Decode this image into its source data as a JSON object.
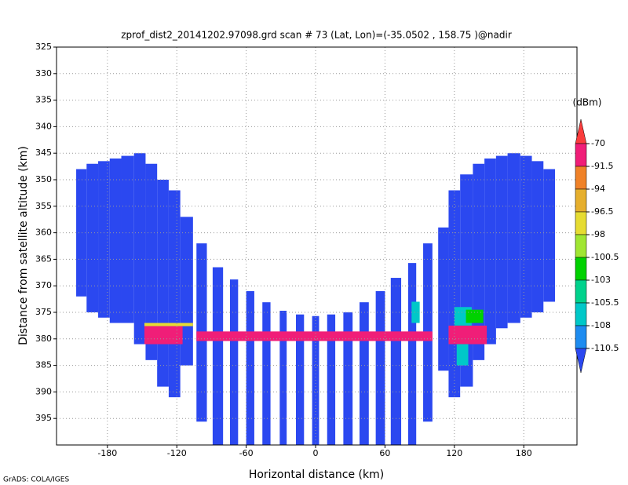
{
  "chart_data": {
    "type": "raster",
    "title": "zprof_dist2_20141202.97098.grd   scan # 73   (Lat, Lon)=(-35.0502 , 158.75 )@nadir",
    "xlabel": "Horizontal distance (km)",
    "ylabel": "Distance from satellite altitude (km)",
    "footer": "GrADS: COLA/IGES",
    "xlim": [
      -224,
      226
    ],
    "ylim": [
      400,
      325
    ],
    "xticks": [
      -180,
      -120,
      -60,
      0,
      60,
      120,
      180
    ],
    "yticks": [
      325,
      330,
      335,
      340,
      345,
      350,
      355,
      360,
      365,
      370,
      375,
      380,
      385,
      390,
      395
    ],
    "grid": true,
    "colorbar": {
      "label": "(dBm)",
      "levels": [
        -70,
        -91.5,
        -94,
        -96.5,
        -98,
        -100.5,
        -103,
        -105.5,
        -108,
        -110.5
      ],
      "colors": [
        "#fa3c3c",
        "#f01e78",
        "#f08228",
        "#e6af2d",
        "#e6dc32",
        "#a0e632",
        "#00d200",
        "#00d28c",
        "#00c8c8",
        "#1e8cf0",
        "#2b48f0"
      ]
    },
    "background_echo": -115,
    "swaths": [
      {
        "x0": -207,
        "x1": -198,
        "top": 348,
        "bottom": 372
      },
      {
        "x0": -198,
        "x1": -188,
        "top": 347,
        "bottom": 375
      },
      {
        "x0": -188,
        "x1": -178,
        "top": 346.5,
        "bottom": 376
      },
      {
        "x0": -178,
        "x1": -168,
        "top": 346,
        "bottom": 377
      },
      {
        "x0": -168,
        "x1": -157,
        "top": 345.5,
        "bottom": 377
      },
      {
        "x0": -157,
        "x1": -147,
        "top": 345,
        "bottom": 381
      },
      {
        "x0": -147,
        "x1": -137,
        "top": 347,
        "bottom": 384
      },
      {
        "x0": -137,
        "x1": -127,
        "top": 350,
        "bottom": 389
      },
      {
        "x0": -127,
        "x1": -117,
        "top": 352,
        "bottom": 391
      },
      {
        "x0": -117,
        "x1": -106,
        "top": 357,
        "bottom": 385
      },
      {
        "x0": -103,
        "x1": -94,
        "top": 362,
        "bottom": 395.6
      },
      {
        "x0": -89,
        "x1": -80,
        "top": 366.5,
        "bottom": 400
      },
      {
        "x0": -74,
        "x1": -67,
        "top": 368.8,
        "bottom": 400
      },
      {
        "x0": -60,
        "x1": -53,
        "top": 371,
        "bottom": 400
      },
      {
        "x0": -46,
        "x1": -39,
        "top": 373.1,
        "bottom": 400
      },
      {
        "x0": -31,
        "x1": -25,
        "top": 374.7,
        "bottom": 400
      },
      {
        "x0": -17,
        "x1": -10,
        "top": 375.4,
        "bottom": 400
      },
      {
        "x0": -3,
        "x1": 3,
        "top": 375.7,
        "bottom": 400
      },
      {
        "x0": 10,
        "x1": 17,
        "top": 375.4,
        "bottom": 400
      },
      {
        "x0": 24,
        "x1": 32,
        "top": 375,
        "bottom": 400
      },
      {
        "x0": 38,
        "x1": 46,
        "top": 373.1,
        "bottom": 400
      },
      {
        "x0": 52,
        "x1": 60,
        "top": 371,
        "bottom": 400
      },
      {
        "x0": 65,
        "x1": 74,
        "top": 368.5,
        "bottom": 400
      },
      {
        "x0": 80,
        "x1": 87,
        "top": 365.7,
        "bottom": 400
      },
      {
        "x0": 93,
        "x1": 101,
        "top": 362,
        "bottom": 395.6
      },
      {
        "x0": 106,
        "x1": 115,
        "top": 359,
        "bottom": 386
      },
      {
        "x0": 115,
        "x1": 125,
        "top": 352,
        "bottom": 391
      },
      {
        "x0": 125,
        "x1": 136,
        "top": 349,
        "bottom": 389
      },
      {
        "x0": 136,
        "x1": 146,
        "top": 347,
        "bottom": 384
      },
      {
        "x0": 146,
        "x1": 156,
        "top": 346,
        "bottom": 381
      },
      {
        "x0": 156,
        "x1": 166,
        "top": 345.5,
        "bottom": 378
      },
      {
        "x0": 166,
        "x1": 177,
        "top": 345,
        "bottom": 377
      },
      {
        "x0": 177,
        "x1": 187,
        "top": 345.5,
        "bottom": 376
      },
      {
        "x0": 187,
        "x1": 197,
        "top": 346.5,
        "bottom": 375
      },
      {
        "x0": 197,
        "x1": 207,
        "top": 348,
        "bottom": 373
      }
    ],
    "echoes": [
      {
        "x0": -148,
        "x1": -106,
        "top": 377,
        "bottom": 377.6,
        "value": -97
      },
      {
        "x0": -148,
        "x1": -115,
        "top": 377.6,
        "bottom": 381,
        "value": -80
      },
      {
        "x0": -103,
        "x1": 101,
        "top": 378.6,
        "bottom": 380.4,
        "value": -80
      },
      {
        "x0": 83,
        "x1": 90,
        "top": 373,
        "bottom": 377,
        "value": -107
      },
      {
        "x0": 120,
        "x1": 135,
        "top": 374,
        "bottom": 377.5,
        "value": -107
      },
      {
        "x0": 130,
        "x1": 145,
        "top": 374.5,
        "bottom": 377,
        "value": -102
      },
      {
        "x0": 115,
        "x1": 148,
        "top": 377.5,
        "bottom": 381,
        "value": -80
      },
      {
        "x0": 122,
        "x1": 132,
        "top": 381,
        "bottom": 385,
        "value": -107
      }
    ]
  }
}
